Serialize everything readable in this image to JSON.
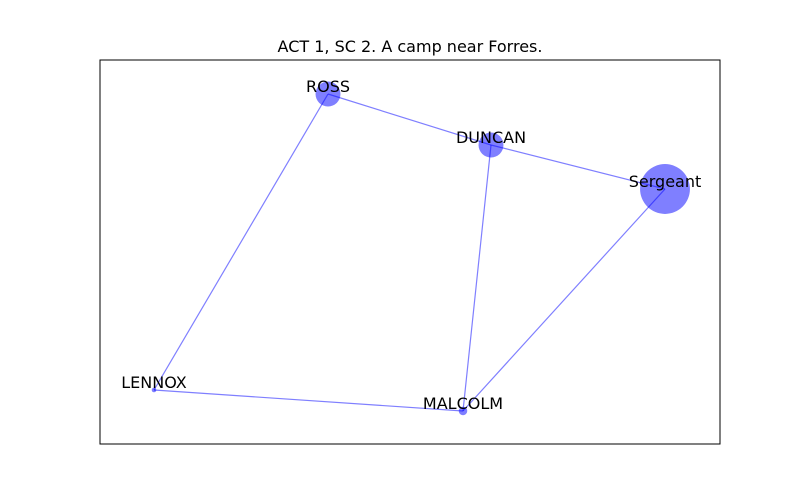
{
  "title": "ACT 1, SC 2. A camp near Forres.",
  "colors": {
    "node": "#0000ff",
    "edge": "#0000ff",
    "frame": "#000000",
    "background": "#ffffff"
  },
  "graph": {
    "nodes": [
      {
        "id": "ross",
        "label": "ROSS",
        "weight": 3
      },
      {
        "id": "duncan",
        "label": "DUNCAN",
        "weight": 3
      },
      {
        "id": "sergeant",
        "label": "Sergeant",
        "weight": 12
      },
      {
        "id": "lennox",
        "label": "LENNOX",
        "weight": 0.1
      },
      {
        "id": "malcolm",
        "label": "MALCOLM",
        "weight": 0.35
      }
    ],
    "edges": [
      {
        "source": "ross",
        "target": "duncan"
      },
      {
        "source": "ross",
        "target": "lennox"
      },
      {
        "source": "duncan",
        "target": "sergeant"
      },
      {
        "source": "duncan",
        "target": "malcolm"
      },
      {
        "source": "sergeant",
        "target": "malcolm"
      },
      {
        "source": "lennox",
        "target": "malcolm"
      }
    ]
  }
}
